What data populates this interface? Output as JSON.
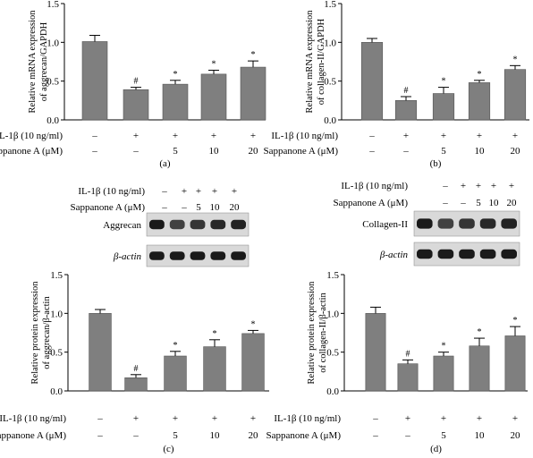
{
  "treatment_labels": {
    "il1b": "IL-1β (10 ng/ml)",
    "sap": "Sappanone A (μM)"
  },
  "treatment_conditions": {
    "il1b": [
      "–",
      "+",
      "+",
      "+",
      "+"
    ],
    "sap": [
      "–",
      "–",
      "5",
      "10",
      "20"
    ]
  },
  "markers": {
    "hash": "#",
    "star": "*"
  },
  "western_blots": [
    {
      "target_label": "Aggrecan",
      "loading_label": "β-actin"
    },
    {
      "target_label": "Collagen-II",
      "loading_label": "β-actin"
    }
  ],
  "colors": {
    "bar": "#7f7f7f",
    "axis": "#000000",
    "blot_dark": "#1a1a1a",
    "blot_bg": "#d9d9d9"
  },
  "chart_data": [
    {
      "type": "bar",
      "panel_label": "(a)",
      "ylabel": "Relative mRNA expression of aggrecan/GAPDH",
      "ylim": [
        0,
        1.5
      ],
      "yticks": [
        "0.0",
        "0.5",
        "1.0",
        "1.5"
      ],
      "groups": 5,
      "values": [
        1.01,
        0.39,
        0.46,
        0.59,
        0.68
      ],
      "errors": [
        0.08,
        0.03,
        0.05,
        0.05,
        0.08
      ],
      "markers": [
        "",
        "#",
        "*",
        "*",
        "*"
      ]
    },
    {
      "type": "bar",
      "panel_label": "(b)",
      "ylabel": "Relative mRNA expression of collagen-II/GAPDH",
      "ylim": [
        0,
        1.5
      ],
      "yticks": [
        "0.0",
        "0.5",
        "1.0",
        "1.5"
      ],
      "groups": 5,
      "values": [
        1.0,
        0.25,
        0.34,
        0.48,
        0.65
      ],
      "errors": [
        0.05,
        0.05,
        0.08,
        0.03,
        0.05
      ],
      "markers": [
        "",
        "#",
        "*",
        "*",
        "*"
      ]
    },
    {
      "type": "bar",
      "panel_label": "(c)",
      "ylabel": "Relative protein expression of aggrecan/β-actin",
      "ylim": [
        0,
        1.5
      ],
      "yticks": [
        "0.0",
        "0.5",
        "1.0",
        "1.5"
      ],
      "groups": 5,
      "values": [
        1.0,
        0.17,
        0.45,
        0.57,
        0.74
      ],
      "errors": [
        0.05,
        0.04,
        0.06,
        0.09,
        0.04
      ],
      "markers": [
        "",
        "#",
        "*",
        "*",
        "*"
      ]
    },
    {
      "type": "bar",
      "panel_label": "(d)",
      "ylabel": "Relative protein expression of collagen-II/β-actin",
      "ylim": [
        0,
        1.5
      ],
      "yticks": [
        "0.0",
        "0.5",
        "1.0",
        "1.5"
      ],
      "groups": 5,
      "values": [
        1.0,
        0.35,
        0.45,
        0.58,
        0.71
      ],
      "errors": [
        0.08,
        0.05,
        0.05,
        0.1,
        0.12
      ],
      "markers": [
        "",
        "#",
        "*",
        "*",
        "*"
      ]
    }
  ]
}
